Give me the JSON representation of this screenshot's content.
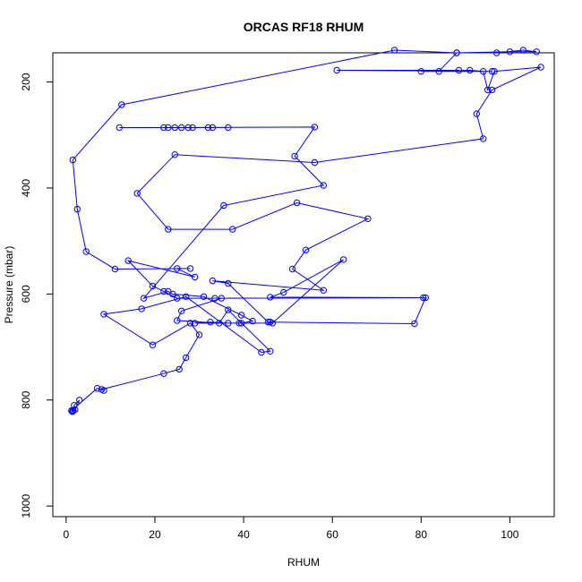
{
  "chart_data": {
    "type": "line",
    "title": "ORCAS RF18 RHUM",
    "xlabel": "RHUM",
    "ylabel": "Pressure (mbar)",
    "xlim": [
      -3,
      110
    ],
    "ylim": [
      1020,
      145
    ],
    "y_reversed": true,
    "xticks": [
      0,
      20,
      40,
      60,
      80,
      100
    ],
    "yticks": [
      200,
      400,
      600,
      800,
      1000
    ],
    "grid": false,
    "color": "#0000ff",
    "series": [
      {
        "x": [
          1.5,
          2,
          3,
          1.8,
          1.6,
          1.4,
          1.2,
          7,
          8.5,
          8,
          22,
          25.5,
          27,
          30,
          28,
          19.5,
          8.5,
          17,
          27,
          44,
          46,
          36.5,
          34.5,
          25,
          26,
          35,
          33.5,
          80.5,
          25,
          22,
          19.5,
          14,
          29,
          25,
          28,
          11,
          4.5,
          2.5,
          1.5,
          12.5,
          74,
          88,
          97,
          103,
          106,
          100,
          88,
          84,
          88.5,
          61,
          96,
          80,
          91,
          94,
          95,
          96.5,
          107,
          96,
          92.5,
          94,
          56,
          24.5,
          16,
          23,
          37.5,
          52,
          68,
          54,
          51,
          58,
          33,
          36.5,
          45.5,
          46,
          78.5,
          81,
          46,
          49,
          62.5,
          46.5,
          39,
          36.5,
          32.5,
          29,
          39.5,
          42,
          39.5,
          31,
          24,
          23,
          17.5,
          35.5,
          58,
          51.5,
          56,
          24.5,
          23,
          27.5,
          32,
          22,
          12,
          26,
          33,
          36.5,
          28.5
        ],
        "y": [
          820,
          818,
          800,
          810,
          820,
          822,
          820,
          778,
          782,
          780,
          750,
          742,
          720,
          677,
          655,
          696,
          638,
          628,
          605,
          710,
          708,
          630,
          655,
          650,
          632,
          608,
          608,
          607,
          608,
          595,
          585,
          537,
          568,
          552,
          552,
          553,
          520,
          440,
          347,
          243,
          140,
          145,
          145,
          140,
          143,
          143,
          145,
          180,
          178,
          178,
          180,
          180,
          178,
          180,
          215,
          180,
          172,
          215,
          260,
          307,
          352,
          337,
          410,
          478,
          478,
          428,
          458,
          517,
          553,
          593,
          575,
          580,
          653,
          653,
          656,
          607,
          606,
          597,
          535,
          655,
          655,
          655,
          653,
          655,
          655,
          651,
          640,
          605,
          600,
          595,
          608,
          433,
          395,
          340,
          285,
          286,
          286,
          286,
          286,
          286,
          286,
          286,
          286,
          286,
          286
        ]
      }
    ]
  }
}
